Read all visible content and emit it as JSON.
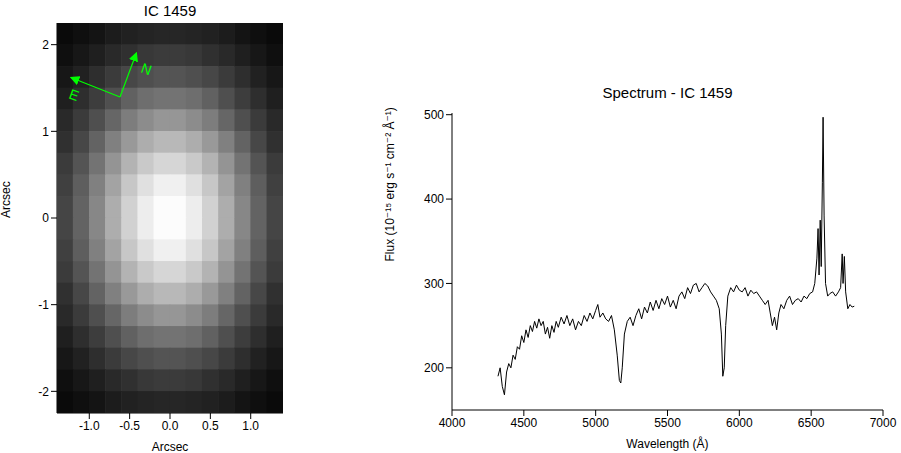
{
  "chart_data": [
    {
      "type": "heatmap",
      "title": "IC 1459",
      "x_label": "Arcsec",
      "y_label": "Arcsec",
      "xlim": [
        -1.4,
        1.4
      ],
      "ylim": [
        -2.25,
        2.25
      ],
      "xticks": [
        {
          "value": -1,
          "label": "-1.0"
        },
        {
          "value": -0.5,
          "label": "-0.5"
        },
        {
          "value": 0,
          "label": "0.0"
        },
        {
          "value": 0.5,
          "label": "0.5"
        },
        {
          "value": 1,
          "label": "1.0"
        }
      ],
      "yticks": [
        -2,
        -1,
        0,
        1,
        2
      ],
      "annotations": [
        {
          "text": "N",
          "color": "#00ff00"
        },
        {
          "text": "E",
          "color": "#00ff00"
        }
      ],
      "x": [
        -1.3,
        -1.1,
        -0.9,
        -0.7,
        -0.5,
        -0.3,
        -0.1,
        0.1,
        0.3,
        0.5,
        0.7,
        0.9,
        1.1,
        1.3
      ],
      "y": [
        2.125,
        1.875,
        1.625,
        1.375,
        1.125,
        0.875,
        0.625,
        0.375,
        0.125,
        -0.125,
        -0.375,
        -0.625,
        -0.875,
        -1.125,
        -1.375,
        -1.625,
        -1.875,
        -2.125
      ],
      "cells": [
        [
          0.04,
          0.06,
          0.08,
          0.11,
          0.13,
          0.14,
          0.15,
          0.15,
          0.14,
          0.13,
          0.11,
          0.08,
          0.06,
          0.04
        ],
        [
          0.06,
          0.09,
          0.12,
          0.16,
          0.19,
          0.22,
          0.23,
          0.23,
          0.22,
          0.19,
          0.16,
          0.12,
          0.09,
          0.06
        ],
        [
          0.09,
          0.13,
          0.18,
          0.23,
          0.28,
          0.31,
          0.33,
          0.33,
          0.31,
          0.28,
          0.23,
          0.18,
          0.13,
          0.09
        ],
        [
          0.12,
          0.18,
          0.24,
          0.31,
          0.38,
          0.43,
          0.45,
          0.45,
          0.43,
          0.38,
          0.31,
          0.24,
          0.18,
          0.12
        ],
        [
          0.16,
          0.23,
          0.31,
          0.4,
          0.49,
          0.55,
          0.59,
          0.59,
          0.55,
          0.49,
          0.4,
          0.31,
          0.23,
          0.16
        ],
        [
          0.19,
          0.28,
          0.39,
          0.5,
          0.6,
          0.68,
          0.72,
          0.72,
          0.68,
          0.6,
          0.5,
          0.39,
          0.28,
          0.19
        ],
        [
          0.23,
          0.33,
          0.45,
          0.58,
          0.7,
          0.79,
          0.84,
          0.84,
          0.79,
          0.7,
          0.58,
          0.45,
          0.33,
          0.23
        ],
        [
          0.25,
          0.37,
          0.5,
          0.64,
          0.78,
          0.88,
          0.94,
          0.94,
          0.88,
          0.78,
          0.64,
          0.5,
          0.37,
          0.25
        ],
        [
          0.27,
          0.39,
          0.53,
          0.68,
          0.82,
          0.93,
          0.99,
          0.99,
          0.93,
          0.82,
          0.68,
          0.53,
          0.39,
          0.27
        ],
        [
          0.27,
          0.39,
          0.53,
          0.68,
          0.82,
          0.93,
          0.99,
          0.99,
          0.93,
          0.82,
          0.68,
          0.53,
          0.39,
          0.27
        ],
        [
          0.25,
          0.37,
          0.5,
          0.64,
          0.78,
          0.88,
          0.94,
          0.94,
          0.88,
          0.78,
          0.64,
          0.5,
          0.37,
          0.25
        ],
        [
          0.23,
          0.33,
          0.45,
          0.58,
          0.7,
          0.79,
          0.84,
          0.84,
          0.79,
          0.7,
          0.58,
          0.45,
          0.33,
          0.23
        ],
        [
          0.19,
          0.28,
          0.39,
          0.5,
          0.6,
          0.68,
          0.72,
          0.72,
          0.68,
          0.6,
          0.5,
          0.39,
          0.28,
          0.19
        ],
        [
          0.16,
          0.23,
          0.31,
          0.4,
          0.49,
          0.55,
          0.59,
          0.59,
          0.55,
          0.49,
          0.4,
          0.31,
          0.23,
          0.16
        ],
        [
          0.12,
          0.18,
          0.24,
          0.31,
          0.38,
          0.43,
          0.45,
          0.45,
          0.43,
          0.38,
          0.31,
          0.24,
          0.18,
          0.12
        ],
        [
          0.09,
          0.13,
          0.18,
          0.23,
          0.28,
          0.31,
          0.33,
          0.33,
          0.31,
          0.28,
          0.23,
          0.18,
          0.13,
          0.09
        ],
        [
          0.06,
          0.09,
          0.12,
          0.16,
          0.19,
          0.22,
          0.23,
          0.23,
          0.22,
          0.19,
          0.16,
          0.12,
          0.09,
          0.06
        ],
        [
          0.04,
          0.06,
          0.08,
          0.11,
          0.13,
          0.14,
          0.15,
          0.15,
          0.14,
          0.13,
          0.11,
          0.08,
          0.06,
          0.04
        ]
      ]
    },
    {
      "type": "line",
      "title": "Spectrum - IC 1459",
      "x_label": "Wavelength (Å)",
      "y_label": "Flux (10⁻¹⁵ erg s⁻¹ cm⁻² Å⁻¹)",
      "xlim": [
        4000,
        7000
      ],
      "xticks": [
        4000,
        4500,
        5000,
        5500,
        6000,
        6500,
        7000
      ],
      "ylim": [
        150,
        502
      ],
      "yticks": [
        200,
        300,
        400,
        500
      ],
      "color": "#000000",
      "x": [
        4320,
        4335,
        4350,
        4365,
        4380,
        4395,
        4410,
        4425,
        4440,
        4455,
        4470,
        4485,
        4500,
        4515,
        4530,
        4545,
        4560,
        4575,
        4590,
        4605,
        4620,
        4635,
        4650,
        4665,
        4680,
        4695,
        4710,
        4725,
        4740,
        4760,
        4780,
        4800,
        4820,
        4840,
        4860,
        4880,
        4900,
        4920,
        4940,
        4960,
        4980,
        5000,
        5015,
        5030,
        5050,
        5070,
        5090,
        5110,
        5130,
        5150,
        5165,
        5175,
        5185,
        5200,
        5220,
        5240,
        5260,
        5280,
        5300,
        5320,
        5340,
        5360,
        5380,
        5400,
        5420,
        5440,
        5460,
        5480,
        5500,
        5520,
        5540,
        5560,
        5580,
        5600,
        5620,
        5640,
        5660,
        5680,
        5700,
        5720,
        5740,
        5760,
        5780,
        5800,
        5820,
        5840,
        5860,
        5875,
        5885,
        5895,
        5905,
        5920,
        5940,
        5960,
        5980,
        6000,
        6020,
        6040,
        6060,
        6080,
        6100,
        6120,
        6140,
        6160,
        6180,
        6200,
        6215,
        6230,
        6245,
        6260,
        6275,
        6290,
        6310,
        6330,
        6350,
        6370,
        6390,
        6410,
        6430,
        6450,
        6470,
        6490,
        6510,
        6525,
        6540,
        6548,
        6555,
        6563,
        6570,
        6578,
        6583,
        6590,
        6600,
        6615,
        6630,
        6650,
        6670,
        6690,
        6705,
        6716,
        6722,
        6731,
        6740,
        6755,
        6770,
        6785,
        6800
      ],
      "values": [
        190,
        200,
        178,
        168,
        195,
        205,
        200,
        215,
        210,
        225,
        222,
        238,
        230,
        245,
        236,
        250,
        243,
        255,
        247,
        258,
        250,
        255,
        240,
        248,
        235,
        250,
        242,
        255,
        248,
        260,
        252,
        262,
        250,
        258,
        245,
        255,
        250,
        262,
        255,
        265,
        258,
        268,
        275,
        260,
        265,
        258,
        255,
        262,
        245,
        215,
        185,
        182,
        200,
        240,
        255,
        260,
        250,
        262,
        270,
        258,
        272,
        265,
        278,
        268,
        280,
        270,
        282,
        275,
        285,
        272,
        280,
        270,
        285,
        290,
        282,
        295,
        288,
        298,
        300,
        290,
        295,
        300,
        297,
        290,
        285,
        280,
        270,
        240,
        190,
        200,
        250,
        285,
        295,
        290,
        298,
        292,
        290,
        295,
        285,
        292,
        288,
        290,
        285,
        280,
        275,
        280,
        265,
        250,
        260,
        245,
        265,
        275,
        270,
        280,
        285,
        275,
        280,
        282,
        278,
        285,
        282,
        288,
        290,
        300,
        330,
        365,
        310,
        375,
        320,
        420,
        497,
        380,
        300,
        285,
        288,
        290,
        285,
        290,
        295,
        335,
        300,
        332,
        290,
        270,
        275,
        272,
        273
      ]
    }
  ]
}
